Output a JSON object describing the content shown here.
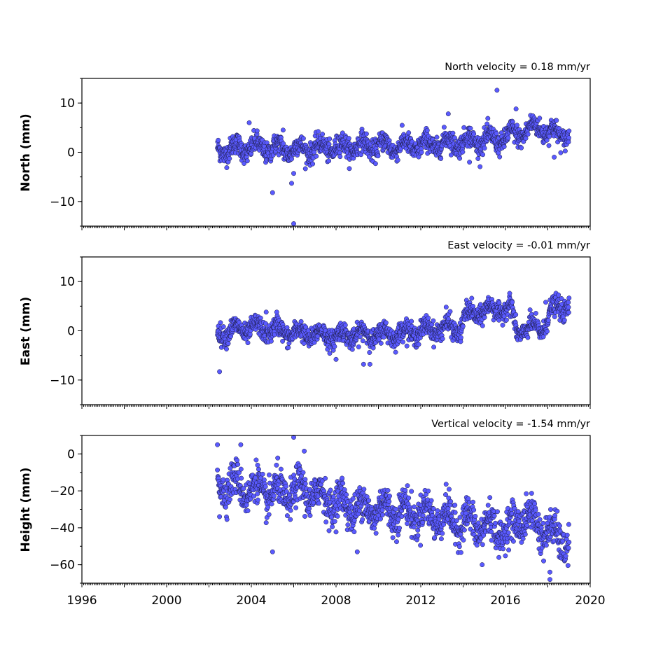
{
  "chart_data": [
    {
      "type": "scatter",
      "title": "North velocity = 0.18 mm/yr",
      "ylabel": "North (mm)",
      "ylim": [
        -15,
        15
      ],
      "yticks": [
        -10,
        0,
        10
      ],
      "ytick_labels": [
        "−10",
        "0",
        "10"
      ],
      "xlim": [
        1996,
        2020
      ],
      "grid": false,
      "marker_color": "#5a5aff",
      "trend": [
        [
          2002.4,
          0.5
        ],
        [
          2003.0,
          0.7
        ],
        [
          2004.0,
          1.0
        ],
        [
          2005.0,
          0.8
        ],
        [
          2006.0,
          0.6
        ],
        [
          2007.0,
          0.8
        ],
        [
          2008.0,
          1.0
        ],
        [
          2009.0,
          1.2
        ],
        [
          2010.0,
          1.3
        ],
        [
          2011.0,
          1.2
        ],
        [
          2012.0,
          1.3
        ],
        [
          2013.0,
          1.8
        ],
        [
          2014.0,
          2.2
        ],
        [
          2015.0,
          2.5
        ],
        [
          2015.8,
          2.6
        ],
        [
          2016.5,
          3.8
        ],
        [
          2017.0,
          4.2
        ],
        [
          2017.6,
          5.5
        ],
        [
          2018.0,
          4.0
        ],
        [
          2018.5,
          3.8
        ],
        [
          2019.0,
          3.5
        ]
      ],
      "spread": 1.5,
      "outliers": [
        [
          2003.9,
          6.0
        ],
        [
          2005.0,
          -8.2
        ],
        [
          2006.0,
          -14.5
        ],
        [
          2005.9,
          -6.3
        ],
        [
          2006.0,
          -4.3
        ],
        [
          2005.5,
          4.5
        ],
        [
          2013.3,
          7.8
        ],
        [
          2015.6,
          12.6
        ],
        [
          2016.5,
          8.8
        ],
        [
          2014.3,
          -2.0
        ],
        [
          2018.3,
          -1.0
        ]
      ]
    },
    {
      "type": "scatter",
      "title": "East velocity = -0.01 mm/yr",
      "ylabel": "East (mm)",
      "ylim": [
        -15,
        15
      ],
      "yticks": [
        -10,
        0,
        10
      ],
      "ytick_labels": [
        "−10",
        "0",
        "10"
      ],
      "xlim": [
        1996,
        2020
      ],
      "grid": false,
      "marker_color": "#5a5aff",
      "trend": [
        [
          2002.4,
          -0.5
        ],
        [
          2003.0,
          0.0
        ],
        [
          2004.0,
          0.5
        ],
        [
          2005.0,
          0.2
        ],
        [
          2006.0,
          -0.5
        ],
        [
          2007.0,
          -0.8
        ],
        [
          2008.0,
          -1.0
        ],
        [
          2009.0,
          -0.8
        ],
        [
          2010.0,
          -0.8
        ],
        [
          2011.0,
          -0.5
        ],
        [
          2012.0,
          0.0
        ],
        [
          2013.0,
          0.5
        ],
        [
          2013.9,
          0.5
        ],
        [
          2014.1,
          3.0
        ],
        [
          2015.0,
          4.0
        ],
        [
          2016.0,
          4.5
        ],
        [
          2016.3,
          4.2
        ],
        [
          2016.5,
          0.0
        ],
        [
          2017.0,
          0.3
        ],
        [
          2017.8,
          0.8
        ],
        [
          2018.1,
          3.5
        ],
        [
          2018.5,
          4.8
        ],
        [
          2019.0,
          5.0
        ]
      ],
      "spread": 1.4,
      "outliers": [
        [
          2002.5,
          -8.3
        ],
        [
          2009.3,
          -6.8
        ],
        [
          2009.6,
          -6.8
        ],
        [
          2008.0,
          -5.8
        ],
        [
          2013.2,
          4.8
        ],
        [
          2017.9,
          5.8
        ],
        [
          2018.5,
          7.3
        ],
        [
          2004.7,
          3.8
        ],
        [
          2005.2,
          3.8
        ]
      ]
    },
    {
      "type": "scatter",
      "title": "Vertical velocity = -1.54 mm/yr",
      "ylabel": "Height (mm)",
      "ylim": [
        -70,
        10
      ],
      "yticks": [
        -60,
        -40,
        -20,
        0
      ],
      "ytick_labels": [
        "−60",
        "−40",
        "−20",
        "0"
      ],
      "xlim": [
        1996,
        2020
      ],
      "xticks": [
        1996,
        2000,
        2004,
        2008,
        2012,
        2016,
        2020
      ],
      "xtick_labels": [
        "1996",
        "2000",
        "2004",
        "2008",
        "2012",
        "2016",
        "2020"
      ],
      "grid": false,
      "marker_color": "#5a5aff",
      "trend": [
        [
          2002.4,
          -15
        ],
        [
          2003.5,
          -18
        ],
        [
          2004.5,
          -20
        ],
        [
          2005.5,
          -22
        ],
        [
          2006.5,
          -20
        ],
        [
          2007.5,
          -24
        ],
        [
          2008.5,
          -28
        ],
        [
          2009.5,
          -30
        ],
        [
          2010.5,
          -30
        ],
        [
          2011.5,
          -32
        ],
        [
          2012.5,
          -33
        ],
        [
          2013.5,
          -36
        ],
        [
          2014.5,
          -38
        ],
        [
          2015.5,
          -40
        ],
        [
          2016.2,
          -42
        ],
        [
          2016.8,
          -33
        ],
        [
          2017.5,
          -38
        ],
        [
          2018.2,
          -44
        ],
        [
          2019.0,
          -48
        ]
      ],
      "spread": 7,
      "outliers": [
        [
          2002.4,
          5.0
        ],
        [
          2003.5,
          5.0
        ],
        [
          2006.0,
          9.0
        ],
        [
          2006.5,
          1.5
        ],
        [
          2005.0,
          -53
        ],
        [
          2018.1,
          -68
        ],
        [
          2018.1,
          -64
        ],
        [
          2014.9,
          -60
        ],
        [
          2009.0,
          -53
        ],
        [
          2002.5,
          -34
        ]
      ]
    }
  ]
}
